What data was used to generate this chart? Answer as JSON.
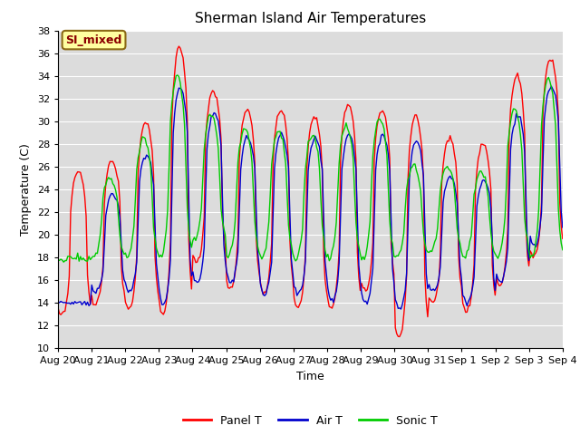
{
  "title": "Sherman Island Air Temperatures",
  "xlabel": "Time",
  "ylabel": "Temperature (C)",
  "ylim": [
    10,
    38
  ],
  "yticks": [
    10,
    12,
    14,
    16,
    18,
    20,
    22,
    24,
    26,
    28,
    30,
    32,
    34,
    36,
    38
  ],
  "annotation": "SI_mixed",
  "annotation_color": "#8B0000",
  "annotation_bg": "#FFFFA0",
  "annotation_border": "#8B6914",
  "line_colors": {
    "panel": "#FF0000",
    "air": "#0000CD",
    "sonic": "#00CC00"
  },
  "line_width": 1.0,
  "bg_color": "#DCDCDC",
  "grid_color": "#FFFFFF",
  "tick_labels": [
    "Aug 20",
    "Aug 21",
    "Aug 22",
    "Aug 23",
    "Aug 24",
    "Aug 25",
    "Aug 26",
    "Aug 27",
    "Aug 28",
    "Aug 29",
    "Aug 30",
    "Aug 31",
    "Sep 1",
    "Sep 2",
    "Sep 3",
    "Sep 4"
  ],
  "legend_labels": [
    "Panel T",
    "Air T",
    "Sonic T"
  ],
  "panel_peaks": [
    25.5,
    26.5,
    30.0,
    36.5,
    32.5,
    31.0,
    31.0,
    30.5,
    31.5,
    31.0,
    30.5,
    28.5,
    28.0,
    34.0,
    35.5
  ],
  "panel_troughs": [
    12.8,
    13.8,
    13.5,
    13.0,
    17.5,
    15.2,
    14.8,
    13.5,
    13.5,
    15.0,
    11.0,
    14.0,
    13.2,
    15.5,
    18.0
  ],
  "air_peaks": [
    14.0,
    23.5,
    27.0,
    33.0,
    30.8,
    28.5,
    28.8,
    28.5,
    28.8,
    28.8,
    28.2,
    25.0,
    24.8,
    30.5,
    33.0
  ],
  "air_troughs": [
    14.0,
    15.0,
    15.0,
    13.8,
    15.8,
    15.8,
    14.8,
    14.8,
    14.2,
    14.0,
    13.5,
    15.0,
    14.0,
    15.8,
    19.0
  ],
  "sonic_peaks": [
    18.0,
    25.0,
    28.5,
    34.0,
    30.5,
    29.5,
    29.2,
    28.8,
    29.5,
    30.2,
    26.0,
    26.0,
    25.5,
    31.0,
    33.8
  ],
  "sonic_troughs": [
    17.8,
    18.0,
    18.0,
    18.0,
    19.5,
    18.0,
    18.0,
    17.8,
    18.0,
    17.8,
    18.0,
    18.5,
    18.0,
    18.0,
    18.0
  ],
  "panel_peak_hour": 14.5,
  "panel_trough_hour": 5.5,
  "air_peak_hour": 15.0,
  "air_trough_hour": 6.0,
  "sonic_peak_hour": 13.0,
  "sonic_trough_hour": 8.0
}
